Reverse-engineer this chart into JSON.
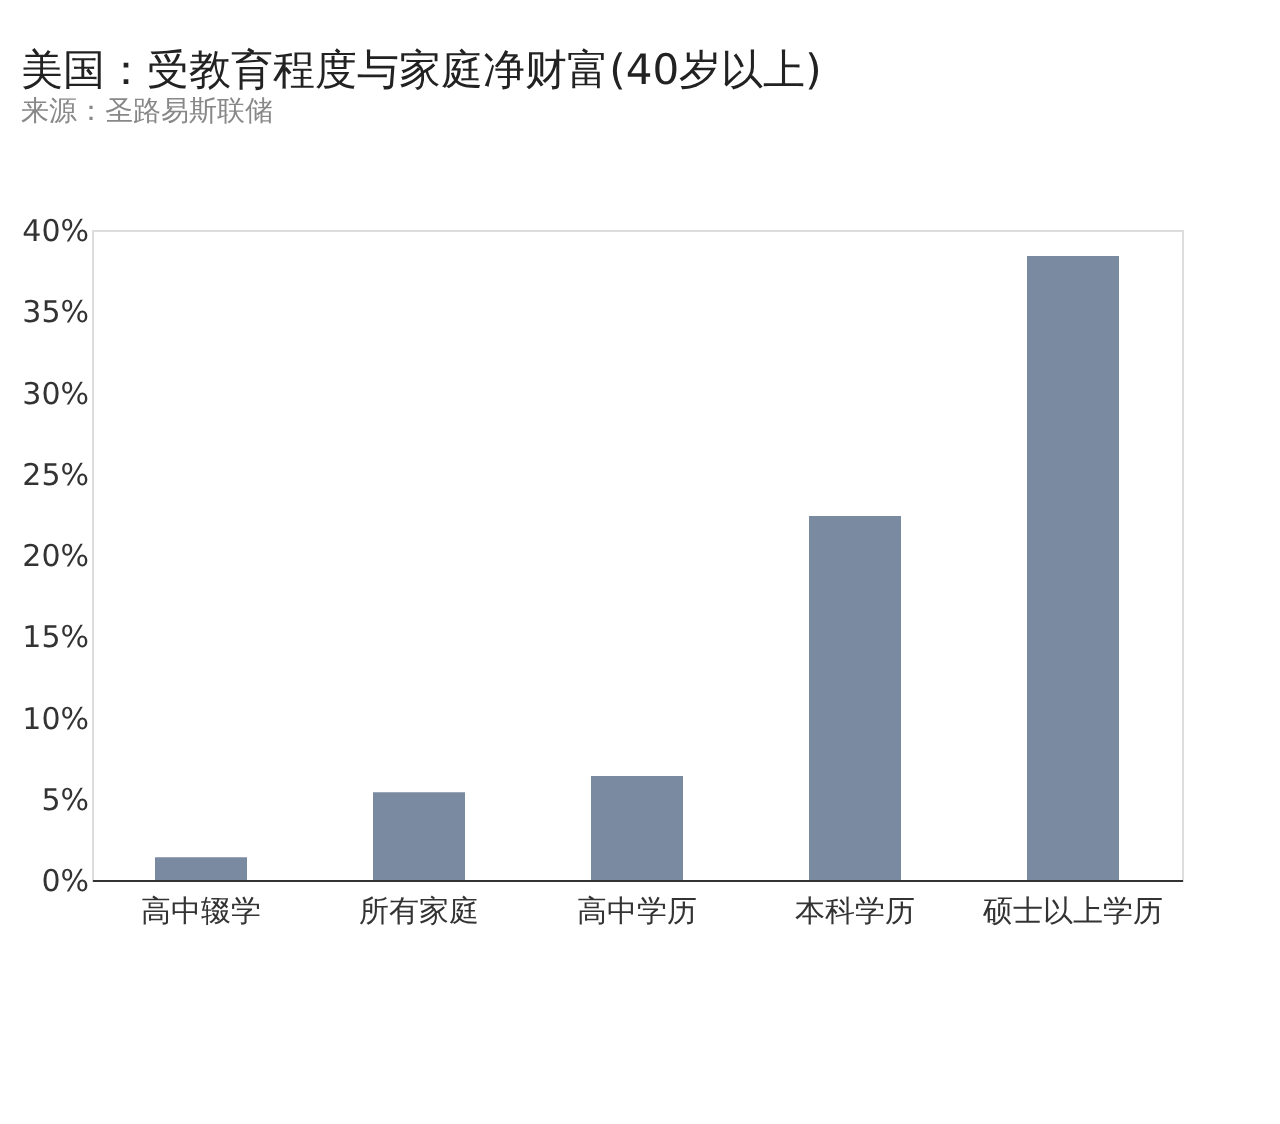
{
  "chart_data": {
    "type": "bar",
    "title": "美国：受教育程度与家庭净财富(40岁以上)",
    "categories": [
      "高中辍学",
      "所有家庭",
      "高中学历",
      "本科学历",
      "硕士以上学历"
    ],
    "values": [
      1.4,
      5.4,
      6.4,
      22.4,
      38.4
    ],
    "color": "#7a8aa0",
    "ylim": [
      0,
      40
    ],
    "yticks": [
      {
        "value": 0,
        "label": "0%"
      },
      {
        "value": 5,
        "label": "5%"
      },
      {
        "value": 10,
        "label": "10%"
      },
      {
        "value": 15,
        "label": "15%"
      },
      {
        "value": 20,
        "label": "20%"
      },
      {
        "value": 25,
        "label": "25%"
      },
      {
        "value": 30,
        "label": "30%"
      },
      {
        "value": 35,
        "label": "35%"
      },
      {
        "value": 40,
        "label": "40%"
      }
    ],
    "grid": false,
    "annotations": [
      "来源：圣路易斯联储"
    ]
  }
}
